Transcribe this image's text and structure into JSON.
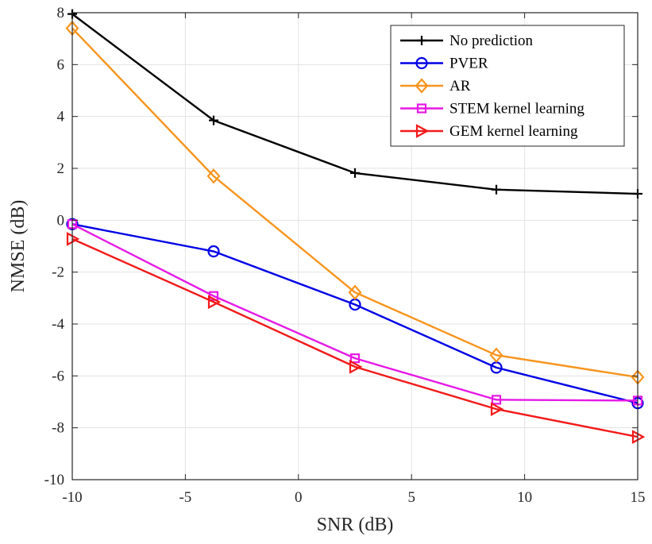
{
  "chart_data": {
    "type": "line",
    "title": "",
    "xlabel": "SNR (dB)",
    "ylabel": "NMSE (dB)",
    "xlim": [
      -10,
      15
    ],
    "ylim": [
      -10,
      8
    ],
    "xticks": [
      -10,
      -5,
      0,
      5,
      10,
      15
    ],
    "xtick_labels": [
      "-10",
      "-5",
      "0",
      "5",
      "10",
      "15"
    ],
    "yticks": [
      -10,
      -8,
      -6,
      -4,
      -2,
      0,
      2,
      4,
      6,
      8
    ],
    "ytick_labels": [
      "-10",
      "-8",
      "-6",
      "-4",
      "-2",
      "0",
      "2",
      "4",
      "6",
      "8"
    ],
    "grid": true,
    "legend_position": "top-right",
    "x": [
      -10,
      -3.75,
      2.5,
      8.75,
      15
    ],
    "series": [
      {
        "name": "No prediction",
        "color": "#000000",
        "marker": "plus",
        "values": [
          7.95,
          3.85,
          1.82,
          1.18,
          1.02
        ]
      },
      {
        "name": "PVER",
        "color": "#0000e6",
        "marker": "circle",
        "values": [
          -0.15,
          -1.2,
          -3.25,
          -5.68,
          -7.05
        ]
      },
      {
        "name": "AR",
        "color": "#f7941d",
        "marker": "diamond",
        "values": [
          7.4,
          1.7,
          -2.78,
          -5.2,
          -6.05
        ]
      },
      {
        "name": "STEM kernel learning",
        "color": "#e619e6",
        "marker": "square",
        "values": [
          -0.15,
          -2.92,
          -5.32,
          -6.92,
          -6.95
        ]
      },
      {
        "name": "GEM kernel learning",
        "color": "#f21a1a",
        "marker": "triangle-right",
        "values": [
          -0.72,
          -3.15,
          -5.65,
          -7.28,
          -8.35
        ]
      }
    ]
  }
}
